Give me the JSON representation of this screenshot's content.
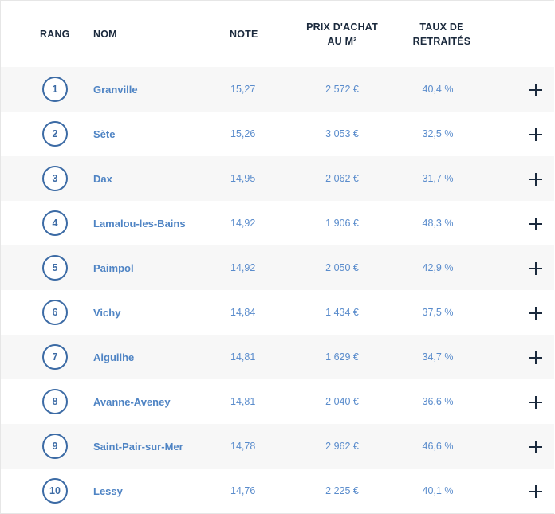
{
  "header": {
    "rank": "RANG",
    "name": "NOM",
    "note": "NOTE",
    "price_line1": "PRIX D'ACHAT",
    "price_line2": "AU M²",
    "retired_line1": "TAUX DE",
    "retired_line2": "RETRAITÉS"
  },
  "rows": [
    {
      "rank": "1",
      "name": "Granville",
      "note": "15,27",
      "price": "2 572 €",
      "retired": "40,4 %"
    },
    {
      "rank": "2",
      "name": "Sète",
      "note": "15,26",
      "price": "3 053 €",
      "retired": "32,5 %"
    },
    {
      "rank": "3",
      "name": "Dax",
      "note": "14,95",
      "price": "2 062 €",
      "retired": "31,7 %"
    },
    {
      "rank": "4",
      "name": "Lamalou-les-Bains",
      "note": "14,92",
      "price": "1 906 €",
      "retired": "48,3 %"
    },
    {
      "rank": "5",
      "name": "Paimpol",
      "note": "14,92",
      "price": "2 050 €",
      "retired": "42,9 %"
    },
    {
      "rank": "6",
      "name": "Vichy",
      "note": "14,84",
      "price": "1 434 €",
      "retired": "37,5 %"
    },
    {
      "rank": "7",
      "name": "Aiguilhe",
      "note": "14,81",
      "price": "1 629 €",
      "retired": "34,7 %"
    },
    {
      "rank": "8",
      "name": "Avanne-Aveney",
      "note": "14,81",
      "price": "2 040 €",
      "retired": "36,6 %"
    },
    {
      "rank": "9",
      "name": "Saint-Pair-sur-Mer",
      "note": "14,78",
      "price": "2 962 €",
      "retired": "46,6 %"
    },
    {
      "rank": "10",
      "name": "Lessy",
      "note": "14,76",
      "price": "2 225 €",
      "retired": "40,1 %"
    }
  ],
  "icons": {
    "expand": "plus-icon"
  },
  "colors": {
    "rank_accent": "#3c6ba5",
    "link_text": "#4f84c4",
    "value_text": "#5a8ccc",
    "header_text": "#1b2a3d",
    "row_alt_bg": "#f7f7f7"
  }
}
